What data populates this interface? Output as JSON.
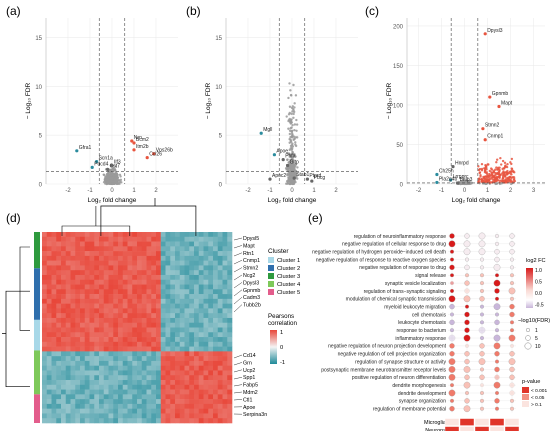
{
  "panel_labels": {
    "a": "(a)",
    "b": "(b)",
    "c": "(c)",
    "d": "(d)",
    "e": "(e)"
  },
  "volcano_axes": {
    "xlabel": "Log₂ fold change",
    "ylabel": "− Log₁₀ FDR"
  },
  "colors": {
    "down": "#2b8c9e",
    "up": "#e8553f",
    "ns": "#9a9a9a",
    "heat_high": "#e8473a",
    "heat_mid": "#f4f4f4",
    "heat_low": "#1f8a99",
    "dend": "#000000"
  },
  "chart_data": [
    {
      "type": "scatter",
      "panel": "a",
      "xlabel": "Log₂ fold change",
      "ylabel": "− Log₁₀ FDR",
      "xlim": [
        -3,
        3
      ],
      "ylim": [
        0,
        17
      ],
      "x_ticks": [
        "-2",
        "-1",
        "0",
        "1",
        "2"
      ],
      "y_ticks": [
        "0",
        "5",
        "10",
        "15"
      ],
      "threshold_lines": {
        "x": [
          -0.58,
          0.58
        ],
        "y": 1.3
      },
      "labeled_genes": [
        {
          "label": "Gfra1",
          "x": -1.6,
          "y": 3.4
        },
        {
          "label": "Scn1a",
          "x": -0.7,
          "y": 2.3
        },
        {
          "label": "Pdcd4",
          "x": -0.9,
          "y": 1.7
        },
        {
          "label": "Cst7",
          "x": -0.2,
          "y": 1.5
        },
        {
          "label": "Ilf3",
          "x": 0.0,
          "y": 1.9
        },
        {
          "label": "Nrn",
          "x": 0.9,
          "y": 4.4
        },
        {
          "label": "Bcm2",
          "x": 1.0,
          "y": 4.2
        },
        {
          "label": "Itm2b",
          "x": 1.0,
          "y": 3.5
        },
        {
          "label": "Vps26b",
          "x": 1.9,
          "y": 3.1
        },
        {
          "label": "Ccl26",
          "x": 1.6,
          "y": 2.7
        }
      ]
    },
    {
      "type": "scatter",
      "panel": "b",
      "xlabel": "Log₂ fold change",
      "ylabel": "− Log₁₀ FDR",
      "xlim": [
        -3,
        3
      ],
      "ylim": [
        0,
        17
      ],
      "x_ticks": [
        "-2",
        "-1",
        "0",
        "1",
        "2"
      ],
      "y_ticks": [
        "0",
        "5",
        "10",
        "15"
      ],
      "threshold_lines": {
        "x": [
          -0.58,
          0.58
        ],
        "y": 1.3
      },
      "labeled_genes": [
        {
          "label": "Mgll",
          "x": -1.4,
          "y": 5.2
        },
        {
          "label": "Apoe",
          "x": -0.8,
          "y": 3.0
        },
        {
          "label": "Pbfa",
          "x": -0.4,
          "y": 2.5
        },
        {
          "label": "Gltp",
          "x": -0.2,
          "y": 1.9
        },
        {
          "label": "Apoc2",
          "x": -1.0,
          "y": 0.5
        },
        {
          "label": "Stab1",
          "x": 0.1,
          "y": 0.6
        },
        {
          "label": "Ptprd",
          "x": 0.7,
          "y": 0.5
        },
        {
          "label": "Pbcg",
          "x": 0.9,
          "y": 0.3
        }
      ]
    },
    {
      "type": "scatter",
      "panel": "c",
      "xlabel": "Log₂ fold change",
      "ylabel": "− Log₁₀ FDR",
      "xlim": [
        -2.5,
        3.5
      ],
      "ylim": [
        0,
        210
      ],
      "x_ticks": [
        "-2",
        "-1",
        "0",
        "1",
        "2",
        "3"
      ],
      "y_ticks": [
        "0",
        "50",
        "100",
        "150",
        "200"
      ],
      "threshold_lines": {
        "x": [
          -0.58,
          0.58
        ],
        "y": 1.3
      },
      "labeled_genes": [
        {
          "label": "Dpysl3",
          "x": 0.9,
          "y": 190
        },
        {
          "label": "Gpnmb",
          "x": 1.1,
          "y": 110
        },
        {
          "label": "Mapt",
          "x": 1.5,
          "y": 98
        },
        {
          "label": "Stmn2",
          "x": 0.8,
          "y": 70
        },
        {
          "label": "Cnmp1",
          "x": 0.9,
          "y": 56
        },
        {
          "label": "Hnrpd",
          "x": -0.5,
          "y": 22
        },
        {
          "label": "Ch25h",
          "x": -1.2,
          "y": 12
        },
        {
          "label": "Lrrpprc",
          "x": -0.6,
          "y": 5
        },
        {
          "label": "Pla2g4b",
          "x": -1.2,
          "y": 2
        },
        {
          "label": "Bnip3",
          "x": -0.3,
          "y": 1
        }
      ]
    },
    {
      "type": "heatmap",
      "panel": "d",
      "legend_cluster_title": "Cluster",
      "clusters": [
        {
          "name": "Cluster 1",
          "color": "#a8d8e8"
        },
        {
          "name": "Cluster 2",
          "color": "#2f6fad"
        },
        {
          "name": "Cluster 3",
          "color": "#2e9a3e"
        },
        {
          "name": "Cluster 4",
          "color": "#7ec95a"
        },
        {
          "name": "Cluster 5",
          "color": "#e35d8c"
        }
      ],
      "legend_corr_title": "Pearsons correlation",
      "corr_ticks": [
        "1",
        "0",
        "-1"
      ],
      "row_genes_top": [
        "Dpysl5",
        "Mapt",
        "Rtn1",
        "Cnmp1",
        "Stmn2",
        "Ncg2",
        "Dpysl3",
        "Gpnmb",
        "Cadm3",
        "Tubb2b"
      ],
      "row_genes_bottom": [
        "Cd14",
        "Grn",
        "Ucp2",
        "Spp1",
        "Fabp5",
        "Mdm2",
        "Ctl1",
        "Apoe",
        "Serpina3n"
      ]
    },
    {
      "type": "dot",
      "panel": "e",
      "terms": [
        "regulation of neuroinflammatory response",
        "negative regulation of cellular response to drug",
        "negative regulation of hydrogen peroxide−induced cell death",
        "negative regulation of response to reactive oxygen species",
        "negative regulation of response to drug",
        "signal release",
        "synaptic vesicle localization",
        "regulation of trans−synaptic signaling",
        "modulation of chemical synaptic transmission",
        "myeloid leukocyte migration",
        "cell chemotaxis",
        "leukocyte chemotaxis",
        "response to bacterium",
        "inflammatory response",
        "negative regulation of neuron projection development",
        "negative regulation of cell projection organization",
        "regulation of synapse structure or activity",
        "postsynaptic membrane neurotransmitter receptor levels",
        "positive regulation of neuron differentiation",
        "dendrite morphogenesis",
        "dendrite development",
        "synapse organization",
        "regulation of membrane potential"
      ],
      "clusters": [
        "cluster1",
        "cluster2",
        "cluster3",
        "cluster4",
        "cluster5"
      ],
      "log2fc_legend": {
        "title": "log2 FC",
        "ticks": [
          "1.0",
          "0.5",
          "0.0",
          "-0.5"
        ]
      },
      "size_legend": {
        "title": "−log10(FDR)",
        "ticks": [
          "1",
          "5",
          "10"
        ]
      },
      "pvalue_legend": {
        "title": "p-value",
        "levels": [
          "< 0.001",
          "< 0.05",
          "> 0.1"
        ]
      },
      "annotation_rows": [
        {
          "label": "Microglia",
          "cells": [
            false,
            true,
            false,
            true,
            false
          ]
        },
        {
          "label": "Neurons",
          "cells": [
            true,
            false,
            true,
            false,
            true
          ]
        }
      ]
    }
  ]
}
